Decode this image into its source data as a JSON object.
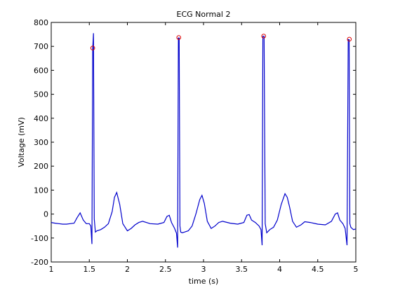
{
  "chart_data": {
    "type": "line",
    "title": "ECG Normal 2",
    "xlabel": "time (s)",
    "ylabel": "Voltage (mV)",
    "xlim": [
      1,
      5
    ],
    "ylim": [
      -200,
      800
    ],
    "xticks": [
      1,
      1.5,
      2,
      2.5,
      3,
      3.5,
      4,
      4.5,
      5
    ],
    "xtick_labels": [
      "1",
      "1.5",
      "2",
      "2.5",
      "3",
      "3.5",
      "4",
      "4.5",
      "5"
    ],
    "yticks": [
      -200,
      -100,
      0,
      100,
      200,
      300,
      400,
      500,
      600,
      700,
      800
    ],
    "ytick_labels": [
      "-200",
      "-100",
      "0",
      "100",
      "200",
      "300",
      "400",
      "500",
      "600",
      "700",
      "800"
    ],
    "grid": false,
    "line_color": "#0000cc",
    "marker_color": "#dd0000",
    "series": [
      {
        "x": [
          1.0,
          1.05,
          1.1,
          1.15,
          1.2,
          1.25,
          1.3,
          1.34,
          1.38,
          1.42,
          1.46,
          1.5,
          1.52,
          1.535,
          1.545,
          1.555,
          1.565,
          1.58,
          1.6,
          1.65,
          1.7,
          1.75,
          1.8,
          1.83,
          1.86,
          1.9,
          1.94,
          2.0,
          2.05,
          2.1,
          2.15,
          2.2,
          2.3,
          2.4,
          2.48,
          2.52,
          2.55,
          2.58,
          2.62,
          2.645,
          2.66,
          2.67,
          2.68,
          2.69,
          2.7,
          2.72,
          2.75,
          2.8,
          2.85,
          2.9,
          2.95,
          2.98,
          3.01,
          3.05,
          3.1,
          3.15,
          3.2,
          3.25,
          3.35,
          3.45,
          3.53,
          3.57,
          3.6,
          3.63,
          3.68,
          3.73,
          3.755,
          3.77,
          3.78,
          3.795,
          3.81,
          3.83,
          3.87,
          3.92,
          3.97,
          4.02,
          4.07,
          4.1,
          4.13,
          4.17,
          4.22,
          4.28,
          4.33,
          4.4,
          4.5,
          4.6,
          4.68,
          4.73,
          4.76,
          4.79,
          4.83,
          4.86,
          4.885,
          4.9,
          4.912,
          4.922,
          4.935,
          4.95,
          4.97,
          5.0
        ],
        "y": [
          -35,
          -38,
          -40,
          -42,
          -42,
          -40,
          -38,
          -15,
          5,
          -25,
          -40,
          -40,
          -50,
          -125,
          690,
          755,
          -20,
          -75,
          -70,
          -65,
          -55,
          -40,
          10,
          70,
          90,
          40,
          -40,
          -70,
          -60,
          -45,
          -35,
          -30,
          -40,
          -42,
          -35,
          -10,
          -5,
          -35,
          -60,
          -80,
          -140,
          735,
          735,
          -50,
          -75,
          -78,
          -75,
          -70,
          -50,
          0,
          60,
          78,
          45,
          -30,
          -60,
          -50,
          -35,
          -30,
          -38,
          -42,
          -35,
          -5,
          -2,
          -25,
          -35,
          -50,
          -65,
          -130,
          742,
          742,
          -40,
          -78,
          -65,
          -55,
          -25,
          40,
          85,
          70,
          30,
          -30,
          -55,
          -45,
          -32,
          -35,
          -42,
          -45,
          -30,
          0,
          5,
          -25,
          -40,
          -60,
          -130,
          728,
          728,
          -40,
          -55,
          -60,
          -65,
          -62
        ]
      }
    ],
    "peaks": {
      "x": [
        1.545,
        2.675,
        3.79,
        4.915
      ],
      "y": [
        693,
        737,
        743,
        730
      ]
    }
  }
}
